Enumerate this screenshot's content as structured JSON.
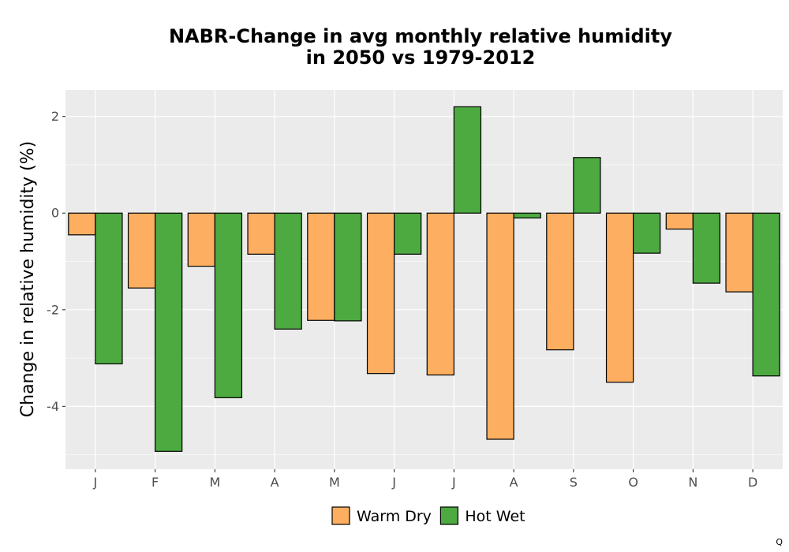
{
  "chart_data": {
    "type": "bar",
    "title_lines": [
      "NABR-Change in avg monthly relative humidity",
      "in 2050 vs 1979-2012"
    ],
    "xlabel": "",
    "ylabel": "Change in relative humidity (%)",
    "categories": [
      "J",
      "F",
      "M",
      "A",
      "M",
      "J",
      "J",
      "A",
      "S",
      "O",
      "N",
      "D"
    ],
    "series": [
      {
        "name": "Warm Dry",
        "color": "#FDAE61",
        "values": [
          -0.45,
          -1.55,
          -1.1,
          -0.85,
          -2.22,
          -3.32,
          -3.35,
          -4.68,
          -2.83,
          -3.5,
          -0.33,
          -1.63
        ]
      },
      {
        "name": "Hot Wet",
        "color": "#4DAA41",
        "values": [
          -3.12,
          -4.93,
          -3.82,
          -2.4,
          -2.23,
          -0.85,
          2.2,
          -0.1,
          1.15,
          -0.83,
          -1.45,
          -3.37
        ]
      }
    ],
    "ylim": [
      -5.3,
      2.55
    ],
    "yticks": [
      2,
      0,
      -2,
      -4
    ],
    "ytick_labels": [
      "2",
      "0",
      "-2",
      "-4"
    ],
    "grid": true,
    "legend_position": "bottom"
  },
  "corner_text": "Q"
}
